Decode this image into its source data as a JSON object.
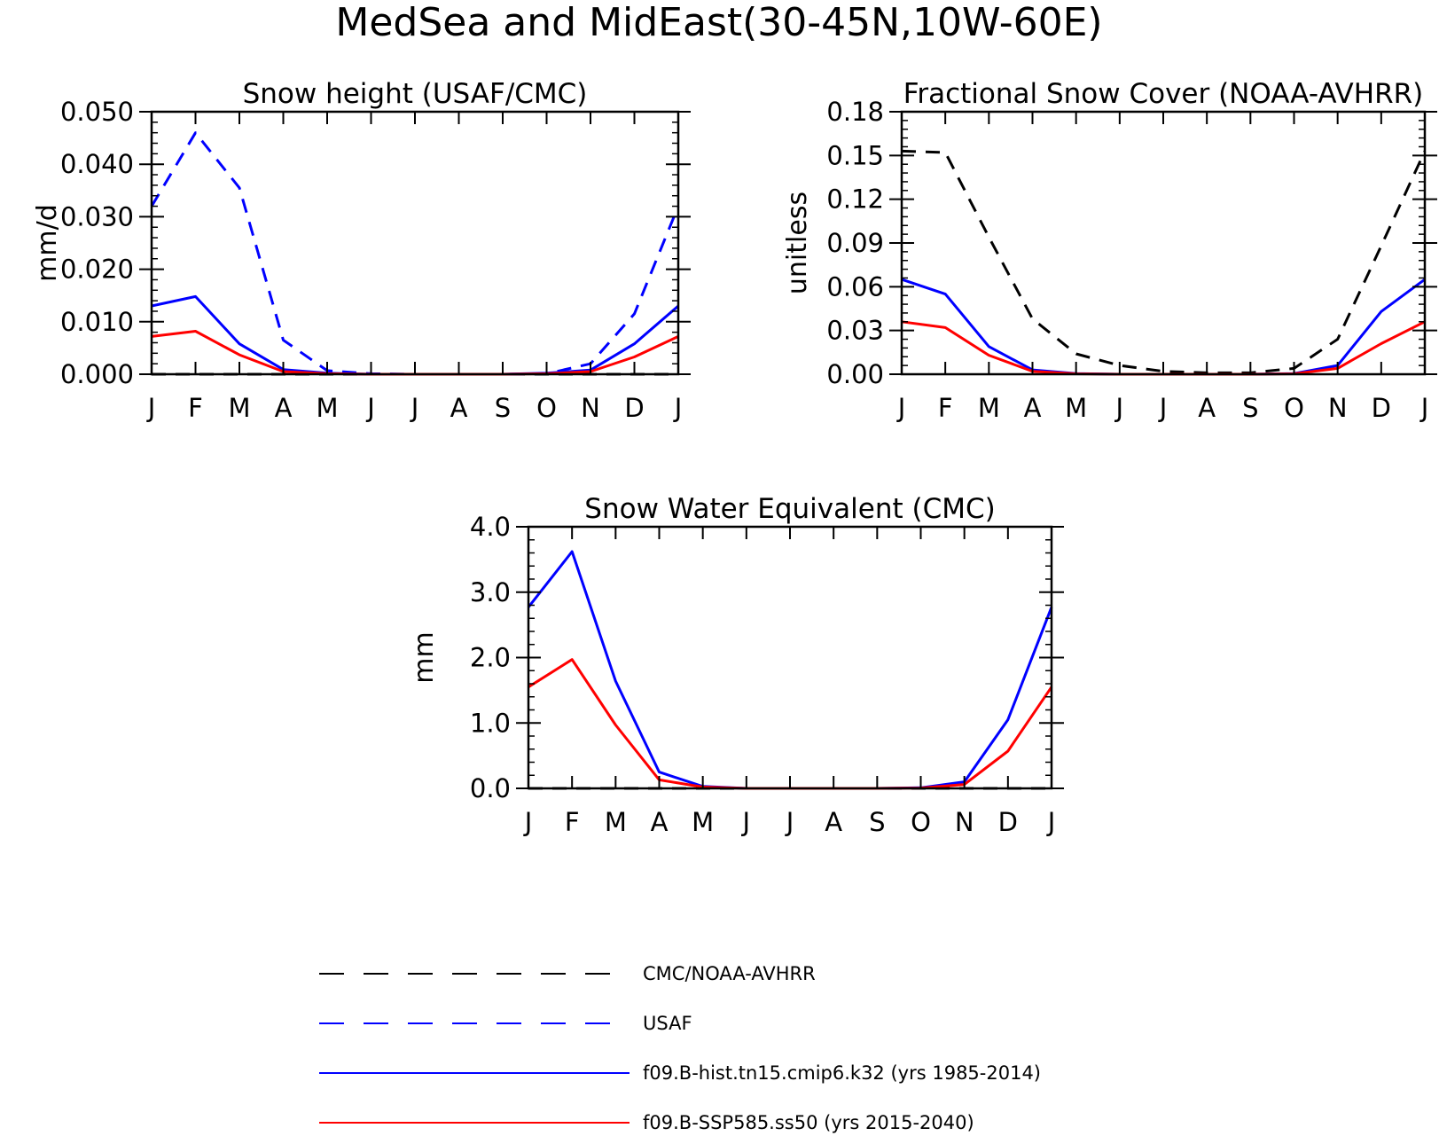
{
  "page": {
    "title": "MedSea and MidEast(30-45N,10W-60E)"
  },
  "colors": {
    "obs1": "#000000",
    "obs2": "#0000ff",
    "hist": "#0000ff",
    "ssp": "#ff0000"
  },
  "legend": [
    {
      "key": "obs1",
      "label": "CMC/NOAA-AVHRR",
      "dashed": true
    },
    {
      "key": "obs2",
      "label": "USAF",
      "dashed": true
    },
    {
      "key": "hist",
      "label": "f09.B-hist.tn15.cmip6.k32 (yrs 1985-2014)",
      "dashed": false
    },
    {
      "key": "ssp",
      "label": "f09.B-SSP585.ss50 (yrs 2015-2040)",
      "dashed": false
    }
  ],
  "chart_data": [
    {
      "type": "line",
      "title": "Snow height (USAF/CMC)",
      "ylabel": "mm/d",
      "categories": [
        "J",
        "F",
        "M",
        "A",
        "M",
        "J",
        "J",
        "A",
        "S",
        "O",
        "N",
        "D",
        "J"
      ],
      "ylim": [
        0,
        0.05
      ],
      "yticks": [
        "0.000",
        "0.010",
        "0.020",
        "0.030",
        "0.040",
        "0.050"
      ],
      "series": [
        {
          "key": "obs1",
          "dashed": true,
          "values": [
            0,
            0,
            0,
            0,
            0,
            0,
            0,
            0,
            0,
            0,
            0,
            0,
            0
          ]
        },
        {
          "key": "obs2",
          "dashed": true,
          "values": [
            0.032,
            0.046,
            0.0355,
            0.0065,
            0.0007,
            0.0001,
            0,
            0,
            0,
            0.0001,
            0.002,
            0.0115,
            0.032
          ]
        },
        {
          "key": "hist",
          "dashed": false,
          "values": [
            0.013,
            0.0148,
            0.0058,
            0.0009,
            0.0002,
            0,
            0,
            0,
            0,
            0.0002,
            0.0008,
            0.0058,
            0.013
          ]
        },
        {
          "key": "ssp",
          "dashed": false,
          "values": [
            0.0072,
            0.0082,
            0.0037,
            0.0005,
            0.0001,
            0,
            0,
            0,
            0,
            0.0001,
            0.0005,
            0.0033,
            0.0072
          ]
        }
      ]
    },
    {
      "type": "line",
      "title": "Fractional Snow Cover (NOAA-AVHRR)",
      "ylabel": "unitless",
      "categories": [
        "J",
        "F",
        "M",
        "A",
        "M",
        "J",
        "J",
        "A",
        "S",
        "O",
        "N",
        "D",
        "J"
      ],
      "ylim": [
        0,
        0.18
      ],
      "yticks": [
        "0.00",
        "0.03",
        "0.06",
        "0.09",
        "0.12",
        "0.15",
        "0.18"
      ],
      "series": [
        {
          "key": "obs1",
          "dashed": true,
          "values": [
            0.153,
            0.152,
            0.094,
            0.038,
            0.014,
            0.006,
            0.002,
            0.001,
            0.001,
            0.004,
            0.024,
            0.088,
            0.153
          ]
        },
        {
          "key": "hist",
          "dashed": false,
          "values": [
            0.065,
            0.055,
            0.019,
            0.003,
            0.0005,
            0,
            0,
            0,
            0,
            0.0005,
            0.006,
            0.043,
            0.065
          ]
        },
        {
          "key": "ssp",
          "dashed": false,
          "values": [
            0.036,
            0.032,
            0.013,
            0.002,
            0.0003,
            0,
            0,
            0,
            0,
            0.0003,
            0.004,
            0.021,
            0.036
          ]
        }
      ]
    },
    {
      "type": "line",
      "title": "Snow Water Equivalent (CMC)",
      "ylabel": "mm",
      "categories": [
        "J",
        "F",
        "M",
        "A",
        "M",
        "J",
        "J",
        "A",
        "S",
        "O",
        "N",
        "D",
        "J"
      ],
      "ylim": [
        0,
        4.0
      ],
      "yticks": [
        "0.0",
        "1.0",
        "2.0",
        "3.0",
        "4.0"
      ],
      "series": [
        {
          "key": "obs1",
          "dashed": true,
          "values": [
            0,
            0,
            0,
            0,
            0,
            0,
            0,
            0,
            0,
            0,
            0,
            0,
            0
          ]
        },
        {
          "key": "hist",
          "dashed": false,
          "values": [
            2.77,
            3.62,
            1.64,
            0.25,
            0.03,
            0,
            0,
            0,
            0,
            0.01,
            0.1,
            1.05,
            2.77
          ]
        },
        {
          "key": "ssp",
          "dashed": false,
          "values": [
            1.55,
            1.97,
            0.97,
            0.13,
            0.02,
            0,
            0,
            0,
            0,
            0.005,
            0.06,
            0.57,
            1.55
          ]
        }
      ]
    }
  ]
}
